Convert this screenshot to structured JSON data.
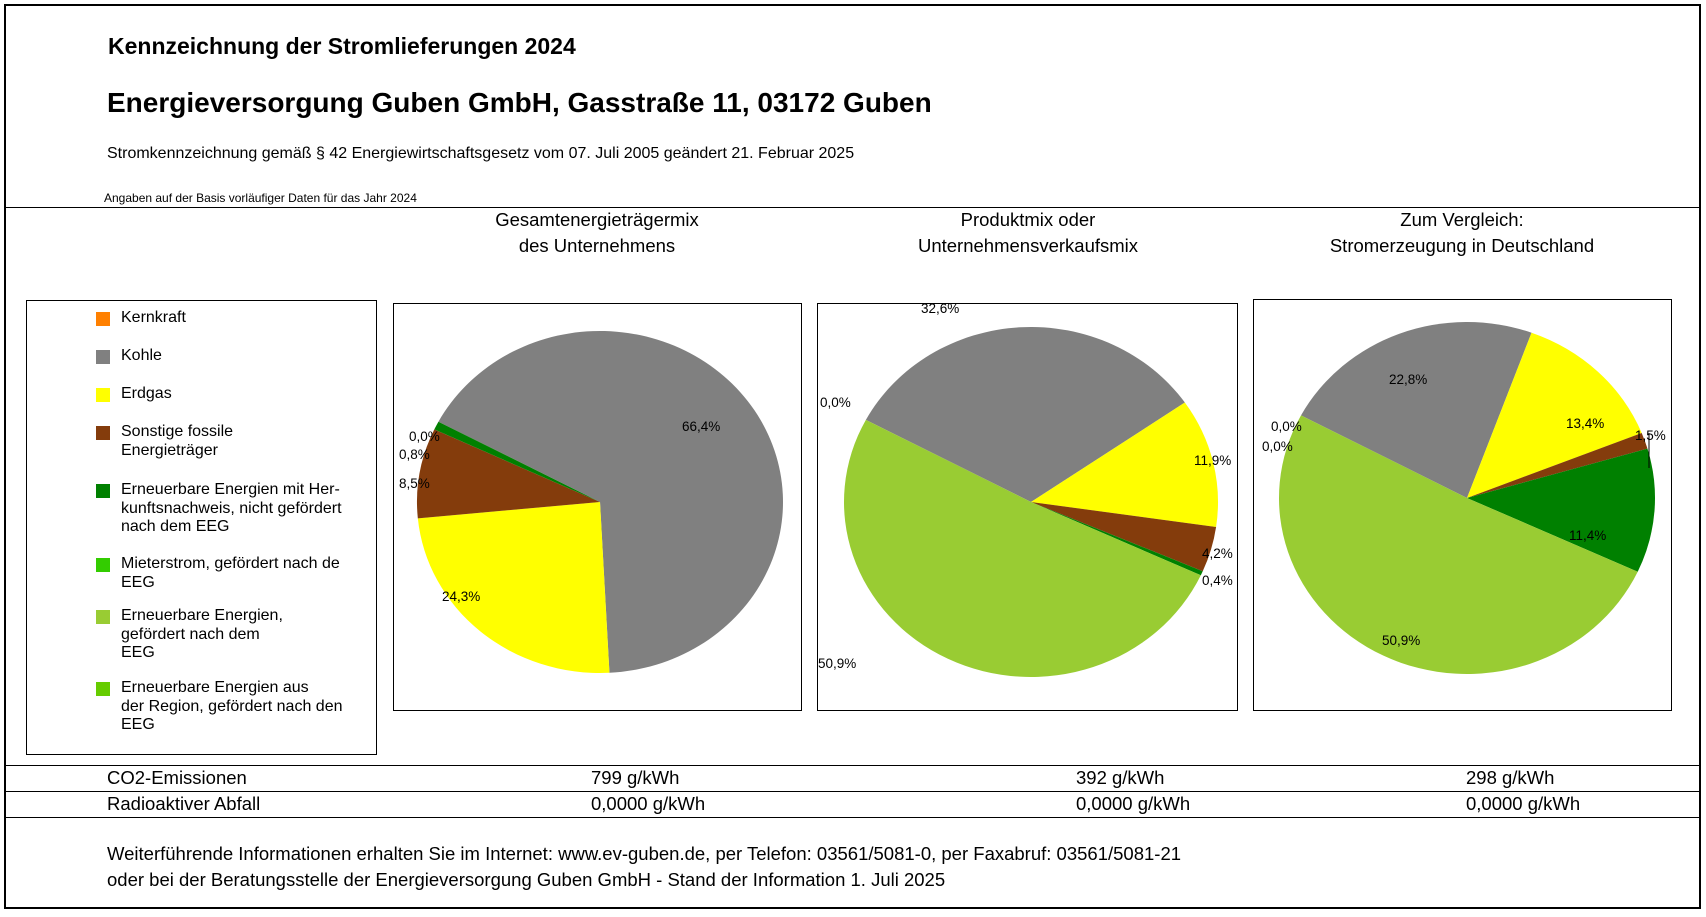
{
  "header": {
    "title": "Kennzeichnung der Stromlieferungen 2024",
    "company": "Energieversorgung Guben GmbH, Gasstraße 11, 03172 Guben",
    "legal": "Stromkennzeichnung gemäß § 42 Energiewirtschaftsgesetz vom 07. Juli 2005 geändert 21. Februar 2025",
    "note": "Angaben auf der Basis vorläufiger Daten für das Jahr 2024"
  },
  "legend": {
    "items": [
      {
        "label": "Kernkraft",
        "color": "#ff8000"
      },
      {
        "label": "Kohle",
        "color": "#808080"
      },
      {
        "label": "Sonstige fossile\nEnergieträger",
        "color": "#843c0c"
      },
      {
        "label": "Erdgas",
        "color": "#ffff00"
      },
      {
        "label": "Erneuerbare Energien mit Her-\nkunftsnachweis, nicht gefördert\nnach dem EEG",
        "color": "#008000"
      },
      {
        "label": "Mieterstrom, gefördert nach de\nEEG",
        "color": "#33cc00"
      },
      {
        "label": "Erneuerbare Energien,\ngefördert nach dem\nEEG",
        "color": "#99cc33"
      },
      {
        "label": "Erneuerbare Energien aus\nder Region, gefördert nach den\nEEG",
        "color": "#66cc00"
      }
    ]
  },
  "chart_data": [
    {
      "type": "pie",
      "title": "Gesamtenergieträgermix\ndes Unternehmens",
      "first_slice_angle_deg": 298,
      "slices": [
        {
          "name": "Kernkraft",
          "value": 0.0,
          "label": "0,0%",
          "color": "#ff8000"
        },
        {
          "name": "Kohle",
          "value": 66.4,
          "label": "66,4%",
          "color": "#808080"
        },
        {
          "name": "Erdgas",
          "value": 24.3,
          "label": "24,3%",
          "color": "#ffff00"
        },
        {
          "name": "Sonstige fossile Energieträger",
          "value": 8.5,
          "label": "8,5%",
          "color": "#843c0c"
        },
        {
          "name": "Erneuerbare Energien mit Herkunftsnachweis, nicht gefördert nach dem EEG",
          "value": 0.8,
          "label": "0,8%",
          "color": "#008000"
        }
      ]
    },
    {
      "type": "pie",
      "title": "Produktmix oder\nUnternehmensverkaufsmix",
      "first_slice_angle_deg": 298,
      "slices": [
        {
          "name": "Kernkraft",
          "value": 0.0,
          "label": "0,0%",
          "color": "#ff8000"
        },
        {
          "name": "Kohle",
          "value": 32.6,
          "label": "32,6%",
          "color": "#808080"
        },
        {
          "name": "Erdgas",
          "value": 11.9,
          "label": "11,9%",
          "color": "#ffff00"
        },
        {
          "name": "Sonstige fossile Energieträger",
          "value": 4.2,
          "label": "4,2%",
          "color": "#843c0c"
        },
        {
          "name": "Erneuerbare Energien mit Herkunftsnachweis, nicht gefördert nach dem EEG",
          "value": 0.4,
          "label": "0,4%",
          "color": "#008000"
        },
        {
          "name": "Erneuerbare Energien, gefördert nach dem EEG",
          "value": 50.9,
          "label": "50,9%",
          "color": "#99cc33"
        }
      ]
    },
    {
      "type": "pie",
      "title": "Zum Vergleich:\nStromerzeugung in Deutschland",
      "first_slice_angle_deg": 298,
      "slices": [
        {
          "name": "Kernkraft",
          "value": 0.0,
          "label": "0,0%",
          "color": "#ff8000"
        },
        {
          "name": "Kohle",
          "value": 22.8,
          "label": "22,8%",
          "color": "#808080"
        },
        {
          "name": "Erdgas",
          "value": 13.4,
          "label": "13,4%",
          "color": "#ffff00"
        },
        {
          "name": "Sonstige fossile Energieträger",
          "value": 1.5,
          "label": "1,5%",
          "color": "#843c0c"
        },
        {
          "name": "Erneuerbare Energien mit Herkunftsnachweis, nicht gefördert nach dem EEG",
          "value": 11.4,
          "label": "11,4%",
          "color": "#008000"
        },
        {
          "name": "Mieterstrom, gefördert nach dem EEG",
          "value": 0.0,
          "label": "0,0%",
          "color": "#33cc00"
        },
        {
          "name": "Erneuerbare Energien, gefördert nach dem EEG",
          "value": 50.9,
          "label": "50,9%",
          "color": "#99cc33"
        }
      ]
    }
  ],
  "emissions": {
    "co2_label": "CO2-Emissionen",
    "waste_label": "Radioaktiver Abfall",
    "co2_values": [
      "799 g/kWh",
      "392 g/kWh",
      "298 g/kWh"
    ],
    "waste_values": [
      "0,0000 g/kWh",
      "0,0000 g/kWh",
      "0,0000 g/kWh"
    ]
  },
  "footer": {
    "line1": "Weiterführende Informationen erhalten Sie im Internet: www.ev-guben.de, per Telefon: 03561/5081-0, per Faxabruf: 03561/5081-21",
    "line2": "oder bei der Beratungsstelle der Energieversorgung Guben GmbH - Stand der Information 1. Juli 2025"
  }
}
